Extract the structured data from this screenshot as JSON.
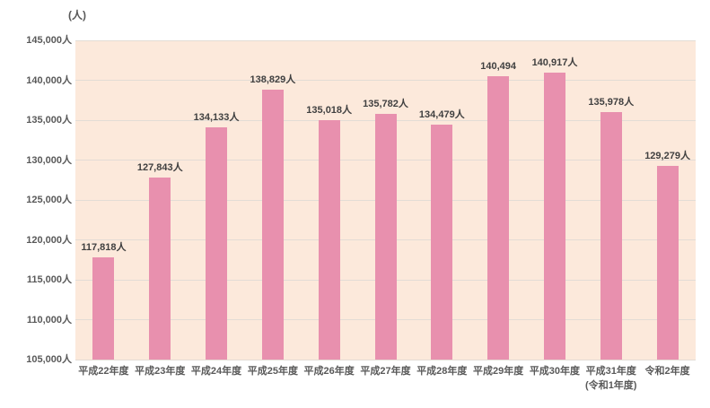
{
  "chart_data": {
    "type": "bar",
    "title": "",
    "unit_label": "(人)",
    "categories": [
      "平成22年度",
      "平成23年度",
      "平成24年度",
      "平成25年度",
      "平成26年度",
      "平成27年度",
      "平成28年度",
      "平成29年度",
      "平成30年度",
      "平成31年度\n(令和1年度)",
      "令和2年度"
    ],
    "values": [
      117818,
      127843,
      134133,
      138829,
      135018,
      135782,
      134479,
      140494,
      140917,
      135978,
      129279
    ],
    "data_labels": [
      "117,818人",
      "127,843人",
      "134,133人",
      "138,829人",
      "135,018人",
      "135,782人",
      "134,479人",
      "140,494",
      "140,917人",
      "135,978人",
      "129,279人"
    ],
    "y_tick_labels": [
      "105,000人",
      "110,000人",
      "115,000人",
      "120,000人",
      "125,000人",
      "130,000人",
      "135,000人",
      "140,000人",
      "145,000人"
    ],
    "ylim": [
      105000,
      145000
    ],
    "ytick_step": 5000,
    "grid": true,
    "legend": "none",
    "colors": {
      "bar": "#E890AE",
      "plot_bg": "#FCE9DB",
      "gridline": "#E3DCD5",
      "axis_text": "#595959",
      "label_text": "#404040",
      "outer_bg": "#FFFFFF"
    }
  }
}
